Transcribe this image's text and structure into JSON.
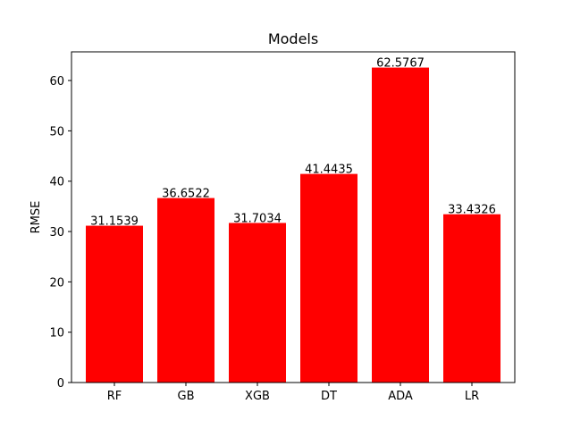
{
  "chart_data": {
    "type": "bar",
    "title": "Models",
    "xlabel": "",
    "ylabel": "RMSE",
    "categories": [
      "RF",
      "GB",
      "XGB",
      "DT",
      "ADA",
      "LR"
    ],
    "values": [
      31.1539,
      36.6522,
      31.7034,
      41.4435,
      62.5767,
      33.4326
    ],
    "data_labels": [
      "31.1539",
      "36.6522",
      "31.7034",
      "41.4435",
      "62.5767",
      "33.4326"
    ],
    "ylim": [
      0,
      65.7
    ],
    "yticks": [
      0,
      10,
      20,
      30,
      40,
      50,
      60
    ],
    "grid": false,
    "legend": "none",
    "bar_color": "#ff0000"
  }
}
